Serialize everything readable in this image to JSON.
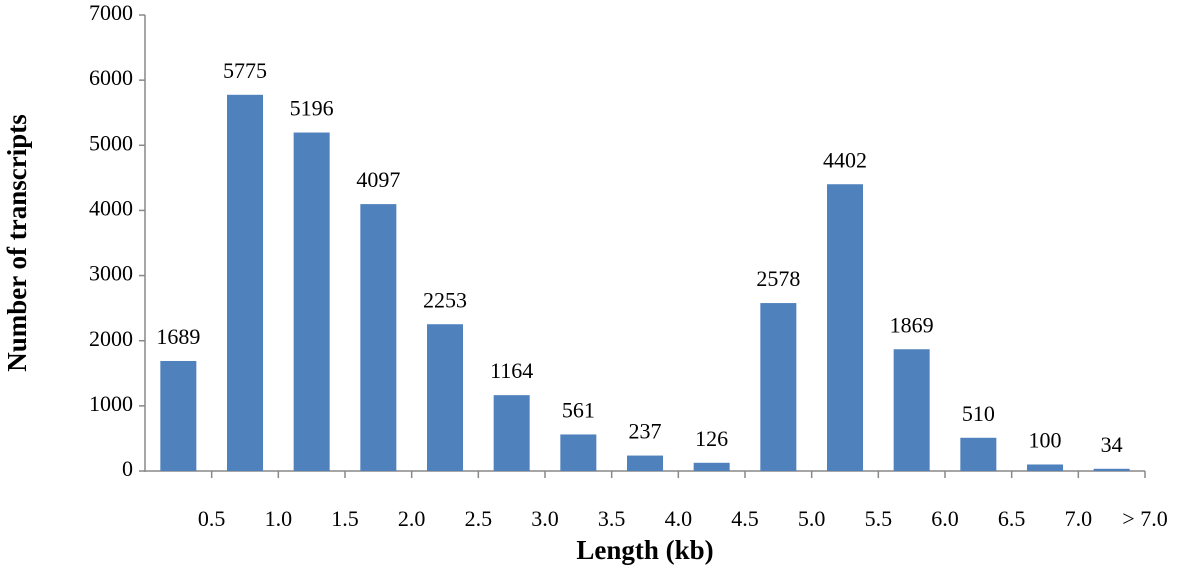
{
  "chart_data": {
    "type": "bar",
    "x_label": "Length (kb)",
    "y_label": "Number of transcripts",
    "categories": [
      "0.5",
      "1.0",
      "1.5",
      "2.0",
      "2.5",
      "3.0",
      "3.5",
      "4.0",
      "4.5",
      "5.0",
      "5.5",
      "6.0",
      "6.5",
      "7.0",
      "> 7.0"
    ],
    "values": [
      1689,
      5775,
      5196,
      4097,
      2253,
      1164,
      561,
      237,
      126,
      2578,
      4402,
      1869,
      510,
      100,
      34
    ],
    "color": "#4f81bd",
    "ylim": [
      0,
      7000
    ],
    "yticks": [
      0,
      1000,
      2000,
      3000,
      4000,
      5000,
      6000,
      7000
    ],
    "grid": false
  }
}
